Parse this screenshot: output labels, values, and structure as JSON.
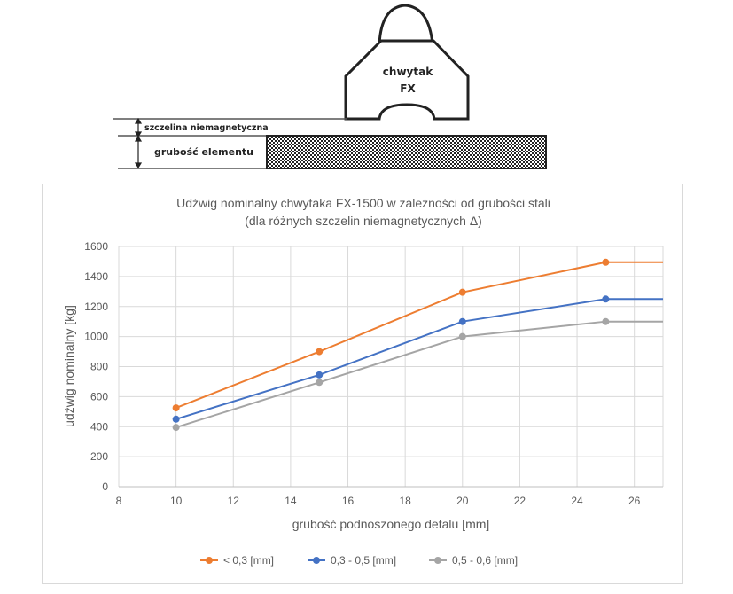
{
  "diagram": {
    "gripper_label_line1": "chwytak",
    "gripper_label_line2": "FX",
    "gap_label": "szczelina niemagnetyczna",
    "thickness_label": "grubość elementu"
  },
  "chart_data": {
    "type": "line",
    "title_line1": "Udźwig nominalny chwytaka FX-1500 w zależności od grubości stali",
    "title_line2": "(dla różnych szczelin niemagnetycznych Δ)",
    "xlabel": "grubość podnoszonego detalu [mm]",
    "ylabel": "udźwig nominalny [kg]",
    "xlim": [
      8,
      27
    ],
    "ylim": [
      0,
      1600
    ],
    "xticks": [
      8,
      10,
      12,
      14,
      16,
      18,
      20,
      22,
      24,
      26
    ],
    "yticks": [
      0,
      200,
      400,
      600,
      800,
      1000,
      1200,
      1400,
      1600
    ],
    "grid": true,
    "legend_position": "bottom",
    "series": [
      {
        "name": "< 0,3 [mm]",
        "color": "#ED7D31",
        "x": [
          10,
          15,
          20,
          25,
          27
        ],
        "y": [
          525,
          900,
          1295,
          1495,
          1495
        ],
        "markers": [
          true,
          true,
          true,
          true,
          false
        ]
      },
      {
        "name": "0,3 - 0,5 [mm]",
        "color": "#4472C4",
        "x": [
          10,
          15,
          20,
          25,
          27
        ],
        "y": [
          450,
          745,
          1100,
          1250,
          1250
        ],
        "markers": [
          true,
          true,
          true,
          true,
          false
        ]
      },
      {
        "name": "0,5 - 0,6 [mm]",
        "color": "#A5A5A5",
        "x": [
          10,
          15,
          20,
          25,
          27
        ],
        "y": [
          395,
          695,
          1000,
          1100,
          1100
        ],
        "markers": [
          true,
          true,
          true,
          true,
          false
        ]
      }
    ]
  }
}
